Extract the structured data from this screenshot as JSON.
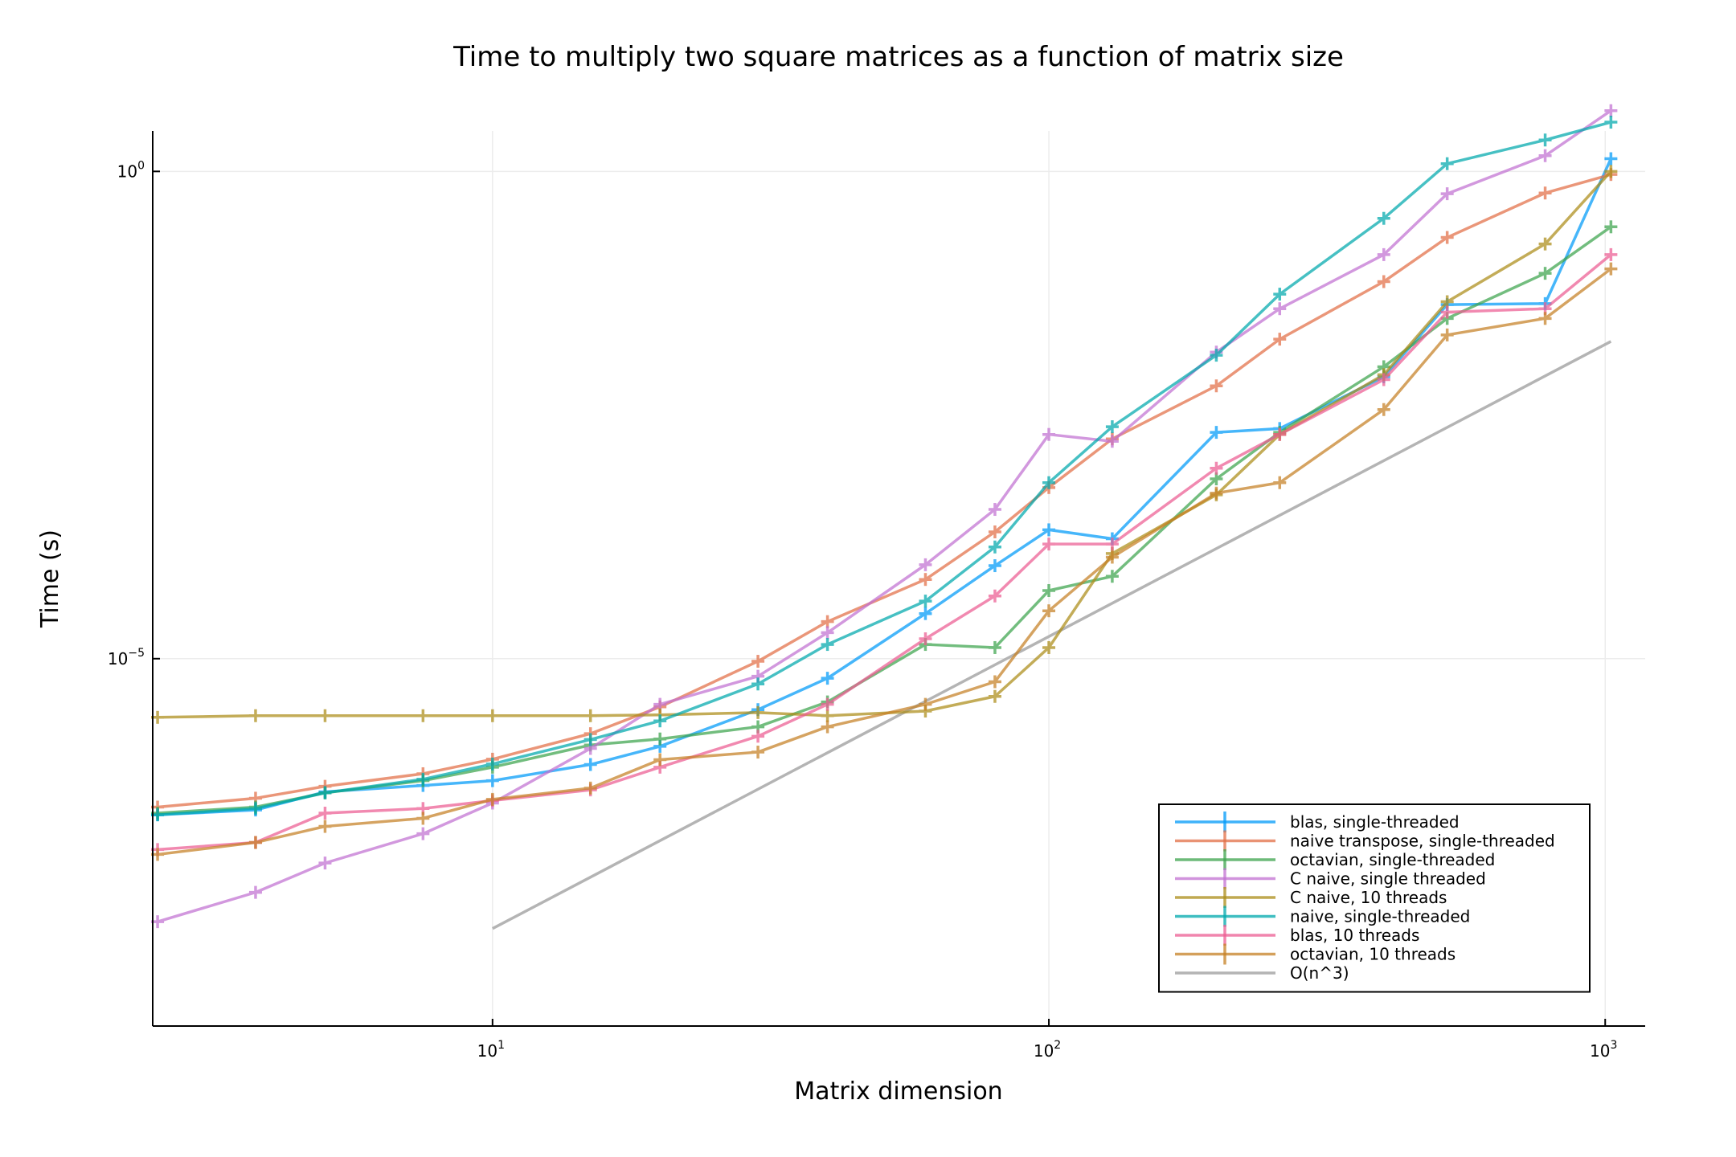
{
  "chart_data": {
    "type": "line",
    "title": "Time to multiply two square matrices as a function of matrix size",
    "xlabel": "Matrix dimension",
    "ylabel": "Time (s)",
    "xscale": "log",
    "yscale": "log",
    "xlim": [
      2.45,
      1180
    ],
    "ylim": [
      1.7e-09,
      2.6
    ],
    "xticks": [
      {
        "value": 10,
        "base": "10",
        "exp": "1"
      },
      {
        "value": 100,
        "base": "10",
        "exp": "2"
      },
      {
        "value": 1000,
        "base": "10",
        "exp": "3"
      }
    ],
    "yticks": [
      {
        "value": 1e-05,
        "base": "10",
        "exp": "−5"
      },
      {
        "value": 1,
        "base": "10",
        "exp": "0"
      }
    ],
    "grid": true,
    "legend_position": "bottom-right",
    "marker": "+",
    "x": [
      2.5,
      3.75,
      5,
      7.5,
      10,
      15,
      20,
      30,
      40,
      60,
      80,
      100,
      130,
      200,
      260,
      400,
      520,
      780,
      1024
    ],
    "series": [
      {
        "name": "blas, single-threaded",
        "color": "#009af9",
        "y": [
          2.5e-07,
          2.8e-07,
          4.3e-07,
          5e-07,
          5.6e-07,
          8.2e-07,
          1.26e-06,
          3e-06,
          6.3e-06,
          2.9e-05,
          9e-05,
          0.00021,
          0.00017,
          0.0021,
          0.0023,
          0.0078,
          0.043,
          0.044,
          1.35
        ]
      },
      {
        "name": "naive transpose, single-threaded",
        "color": "#e26f46",
        "y": [
          3e-07,
          3.7e-07,
          4.9e-07,
          6.6e-07,
          9.3e-07,
          1.7e-06,
          3.2e-06,
          9.4e-06,
          2.4e-05,
          6.5e-05,
          0.0002,
          0.00057,
          0.0018,
          0.0063,
          0.019,
          0.074,
          0.21,
          0.6,
          0.93
        ]
      },
      {
        "name": "octavian, single-threaded",
        "color": "#3da44d",
        "y": [
          2.6e-07,
          3e-07,
          4.2e-07,
          5.6e-07,
          7.7e-07,
          1.3e-06,
          1.5e-06,
          2e-06,
          3.6e-06,
          1.4e-05,
          1.3e-05,
          5e-05,
          7e-05,
          0.0007,
          0.0021,
          0.0099,
          0.031,
          0.09,
          0.27
        ]
      },
      {
        "name": "C naive, single threaded",
        "color": "#c271d2",
        "y": [
          2e-08,
          4e-08,
          8e-08,
          1.6e-07,
          3.3e-07,
          1.2e-06,
          3.4e-06,
          6.6e-06,
          1.85e-05,
          9.2e-05,
          0.00034,
          0.002,
          0.0017,
          0.014,
          0.039,
          0.14,
          0.59,
          1.45,
          4.2
        ]
      },
      {
        "name": "C naive, 10 threads",
        "color": "#ac8d18",
        "y": [
          2.5e-06,
          2.6e-06,
          2.6e-06,
          2.6e-06,
          2.6e-06,
          2.6e-06,
          2.65e-06,
          2.8e-06,
          2.6e-06,
          2.9e-06,
          4.1e-06,
          1.3e-05,
          0.00012,
          0.00048,
          0.002,
          0.0082,
          0.046,
          0.18,
          1.0
        ]
      },
      {
        "name": "naive, single-threaded",
        "color": "#00a9ad",
        "y": [
          2.5e-07,
          2.9e-07,
          4.2e-07,
          5.8e-07,
          8.3e-07,
          1.48e-06,
          2.3e-06,
          5.5e-06,
          1.4e-05,
          3.9e-05,
          0.00014,
          0.00064,
          0.0024,
          0.013,
          0.055,
          0.33,
          1.2,
          2.1,
          3.2
        ]
      },
      {
        "name": "blas, 10 threads",
        "color": "#ed5d92",
        "y": [
          1.1e-07,
          1.3e-07,
          2.6e-07,
          2.9e-07,
          3.5e-07,
          4.5e-07,
          7.7e-07,
          1.6e-06,
          3.4e-06,
          1.6e-05,
          4.4e-05,
          0.00015,
          0.00015,
          0.0009,
          0.002,
          0.0073,
          0.036,
          0.039,
          0.14
        ]
      },
      {
        "name": "octavian, 10 threads",
        "color": "#c68125",
        "y": [
          9.8e-08,
          1.3e-07,
          1.9e-07,
          2.3e-07,
          3.6e-07,
          4.7e-07,
          9.2e-07,
          1.1e-06,
          2e-06,
          3.4e-06,
          5.8e-06,
          3.1e-05,
          0.00011,
          0.0005,
          0.00064,
          0.0036,
          0.021,
          0.031,
          0.1
        ]
      }
    ],
    "reference": {
      "name": "O(n^3)",
      "color": "#b4b4b4",
      "x": [
        10,
        1024
      ],
      "y": [
        1.7e-08,
        0.018
      ]
    }
  }
}
